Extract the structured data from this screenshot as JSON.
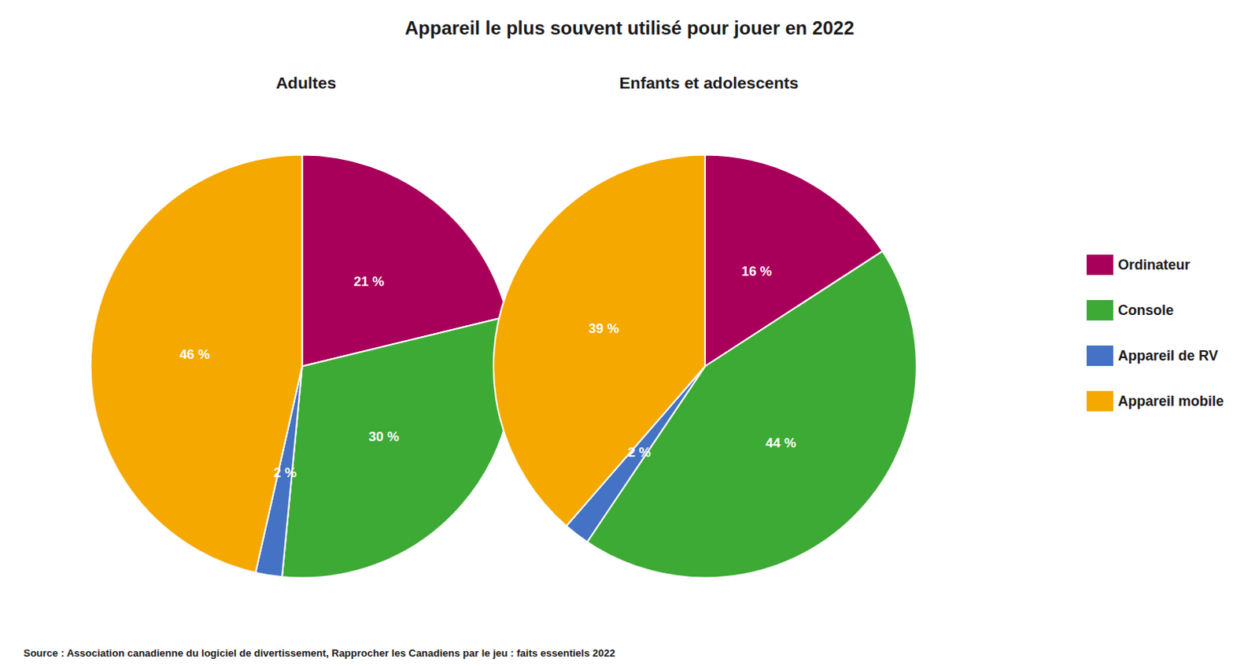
{
  "chart_data": [
    {
      "type": "pie",
      "title": "Appareil le plus souvent utilisé pour jouer en 2022",
      "subtitle": "Adultes",
      "annotations": [
        "Source : Association canadienne du logiciel de divertissement, Rapprocher les Canadiens par le jeu : faits essentiels 2022"
      ],
      "categories": [
        "Ordinateur",
        "Console",
        "Appareil de RV",
        "Appareil mobile"
      ],
      "values": [
        21,
        30,
        2,
        46
      ],
      "value_labels": [
        "21 %",
        "30 %",
        "2 %",
        "46 %"
      ],
      "colors": [
        "#A8005A",
        "#3DAA35",
        "#4472C4",
        "#F5A800"
      ],
      "data_labels": true,
      "legend": "right"
    },
    {
      "type": "pie",
      "subtitle": "Enfants et adolescents",
      "categories": [
        "Ordinateur",
        "Console",
        "Appareil de RV",
        "Appareil mobile"
      ],
      "values": [
        16,
        44,
        2,
        39
      ],
      "value_labels": [
        "16 %",
        "44 %",
        "2 %",
        "39 %"
      ],
      "colors": [
        "#A8005A",
        "#3DAA35",
        "#4472C4",
        "#F5A800"
      ],
      "data_labels": true,
      "legend": "right"
    }
  ]
}
